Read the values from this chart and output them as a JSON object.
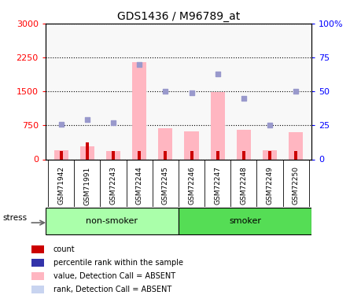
{
  "title": "GDS1436 / M96789_at",
  "samples": [
    "GSM71942",
    "GSM71991",
    "GSM72243",
    "GSM72244",
    "GSM72245",
    "GSM72246",
    "GSM72247",
    "GSM72248",
    "GSM72249",
    "GSM72250"
  ],
  "bar_values": [
    200,
    280,
    180,
    2150,
    680,
    620,
    1490,
    650,
    200,
    600
  ],
  "dot_values": [
    26,
    29,
    27,
    70,
    50,
    49,
    63,
    45,
    25,
    50
  ],
  "count_values": [
    1,
    2,
    1,
    1,
    1,
    1,
    1,
    1,
    1,
    1
  ],
  "ylim_left": [
    0,
    3000
  ],
  "ylim_right": [
    0,
    100
  ],
  "yticks_left": [
    0,
    750,
    1500,
    2250,
    3000
  ],
  "ytick_labels_left": [
    "0",
    "750",
    "1500",
    "2250",
    "3000"
  ],
  "yticks_right": [
    0,
    25,
    50,
    75,
    100
  ],
  "ytick_labels_right": [
    "0",
    "25",
    "50",
    "75",
    "100%"
  ],
  "bar_color": "#ffb6c1",
  "dot_color": "#9999cc",
  "count_color": "#cc0000",
  "rank_absent_color": "#c8d4f0",
  "non_smoker_count": 5,
  "smoker_count": 5,
  "non_smoker_label": "non-smoker",
  "smoker_label": "smoker",
  "group_bg_color": "#aaffaa",
  "sample_bg_color": "#dddddd",
  "stress_label": "stress",
  "legend_items": [
    {
      "color": "#cc0000",
      "label": "count"
    },
    {
      "color": "#3333aa",
      "label": "percentile rank within the sample"
    },
    {
      "color": "#ffb6c1",
      "label": "value, Detection Call = ABSENT"
    },
    {
      "color": "#c8d4f0",
      "label": "rank, Detection Call = ABSENT"
    }
  ]
}
